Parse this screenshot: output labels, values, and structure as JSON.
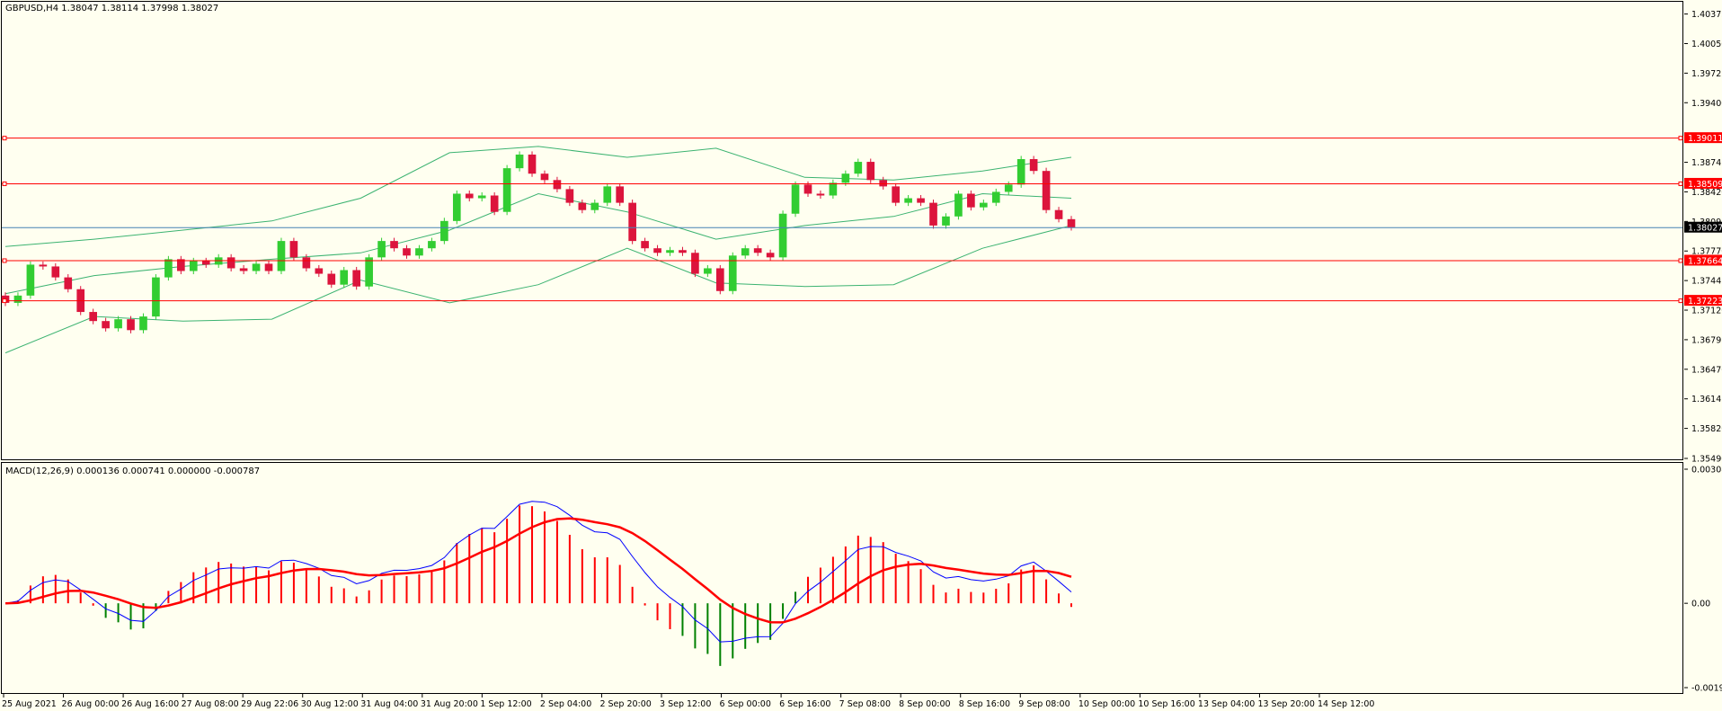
{
  "main_title": "GBPUSD,H4  1.38047 1.38114 1.37998 1.38027",
  "macd_title": "MACD(12,26,9) 0.000136 0.000741 0.000000 -0.000787",
  "colors": {
    "background": "#fffff0",
    "bull": "#32cd32",
    "bear": "#dc143c",
    "bands": "#3cb371",
    "hline": "#ff0000",
    "price_line": "#4682b4",
    "macd_line": "#0000ff",
    "signal_line": "#ff0000"
  },
  "hlines": [
    {
      "label": "1.39011",
      "value": 1.39011
    },
    {
      "label": "1.38509",
      "value": 1.38509
    },
    {
      "label": "1.37664",
      "value": 1.37664
    },
    {
      "label": "1.37223",
      "value": 1.37223
    }
  ],
  "current_price": {
    "label": "1.38027",
    "value": 1.38027
  },
  "chart_data": [
    {
      "type": "candlestick",
      "symbol": "GBPUSD",
      "timeframe": "H4",
      "ohlc_last": {
        "open": 1.38047,
        "high": 1.38114,
        "low": 1.37998,
        "close": 1.38027
      },
      "y_ticks": [
        "1.40375",
        "1.40050",
        "1.39725",
        "1.39400",
        "1.38745",
        "1.38420",
        "1.38095",
        "1.37770",
        "1.37445",
        "1.37120",
        "1.36795",
        "1.36470",
        "1.36145",
        "1.35820",
        "1.35490"
      ],
      "ylim": [
        1.3549,
        1.4045
      ],
      "x_labels": [
        "25 Aug 2021",
        "26 Aug 00:00",
        "26 Aug 16:00",
        "27 Aug 08:00",
        "29 Aug 22:06",
        "30 Aug 12:00",
        "31 Aug 04:00",
        "31 Aug 20:00",
        "1 Sep 12:00",
        "2 Sep 04:00",
        "2 Sep 20:00",
        "3 Sep 12:00",
        "6 Sep 00:00",
        "6 Sep 16:00",
        "7 Sep 08:00",
        "8 Sep 00:00",
        "8 Sep 16:00",
        "9 Sep 08:00",
        "10 Sep 00:00",
        "10 Sep 16:00",
        "13 Sep 04:00",
        "13 Sep 20:00",
        "14 Sep 12:00"
      ],
      "closes": [
        1.372,
        1.3728,
        1.3762,
        1.376,
        1.3748,
        1.3735,
        1.371,
        1.37,
        1.3692,
        1.3702,
        1.369,
        1.3705,
        1.3748,
        1.3768,
        1.3755,
        1.3766,
        1.3762,
        1.377,
        1.3758,
        1.3755,
        1.3763,
        1.3755,
        1.3788,
        1.377,
        1.3758,
        1.3752,
        1.374,
        1.3756,
        1.3738,
        1.377,
        1.3788,
        1.378,
        1.3772,
        1.378,
        1.3788,
        1.381,
        1.384,
        1.3835,
        1.3838,
        1.382,
        1.3868,
        1.3883,
        1.3862,
        1.3855,
        1.3845,
        1.383,
        1.3822,
        1.383,
        1.3848,
        1.383,
        1.3788,
        1.378,
        1.3775,
        1.3778,
        1.3775,
        1.3752,
        1.3758,
        1.3733,
        1.3772,
        1.378,
        1.3775,
        1.377,
        1.3818,
        1.385,
        1.384,
        1.3838,
        1.3852,
        1.3862,
        1.3875,
        1.3855,
        1.3848,
        1.383,
        1.3835,
        1.383,
        1.3805,
        1.3815,
        1.384,
        1.3825,
        1.383,
        1.3842,
        1.385,
        1.3878,
        1.3865,
        1.3822,
        1.3812,
        1.3803
      ],
      "bollinger": {
        "upper_approx": [
          1.3782,
          1.379,
          1.38,
          1.381,
          1.3835,
          1.3885,
          1.3892,
          1.388,
          1.389,
          1.3858,
          1.3855,
          1.3865,
          1.388
        ],
        "middle_approx": [
          1.373,
          1.375,
          1.376,
          1.3768,
          1.3775,
          1.38,
          1.384,
          1.382,
          1.379,
          1.3805,
          1.3815,
          1.384,
          1.3835
        ],
        "lower_approx": [
          1.3665,
          1.3705,
          1.37,
          1.3702,
          1.3745,
          1.372,
          1.374,
          1.378,
          1.3742,
          1.3738,
          1.374,
          1.378,
          1.3805
        ]
      }
    },
    {
      "type": "macd",
      "params": "12,26,9",
      "values": {
        "macd": 0.000136,
        "signal": 0.000741,
        "extra": 0.0,
        "histogram": -0.000787
      },
      "y_ticks": [
        "0.003087",
        "0.00",
        "-0.001942"
      ],
      "ylim": [
        -0.001942,
        0.003087
      ]
    }
  ]
}
